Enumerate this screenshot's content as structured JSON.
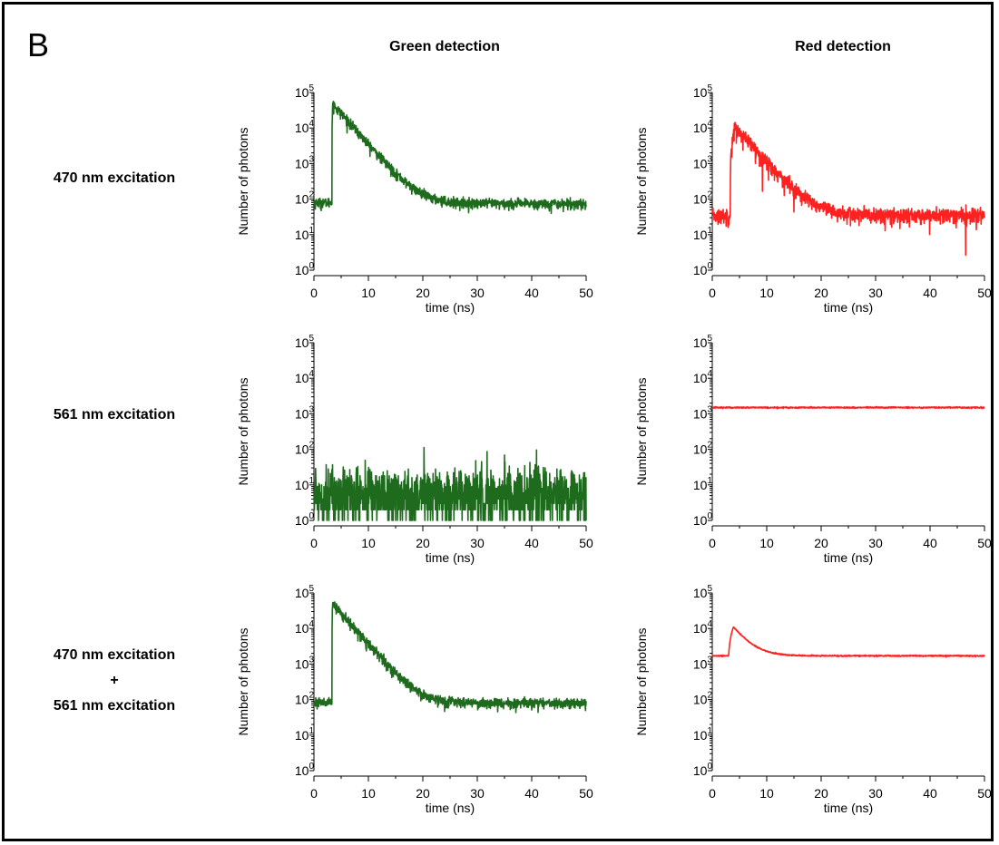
{
  "figure": {
    "panel_letter": "B",
    "column_headers": [
      "Green detection",
      "Red detection"
    ],
    "row_headers": [
      [
        "470 nm excitation"
      ],
      [
        "561 nm excitation"
      ],
      [
        "470 nm excitation",
        "+",
        "561 nm excitation"
      ]
    ]
  },
  "chart_data": [
    {
      "type": "line",
      "row": 0,
      "col": 0,
      "name": "green-470",
      "color": "#1e6b1e",
      "xlabel": "time (ns)",
      "ylabel": "Number of photons",
      "xlim": [
        0,
        50
      ],
      "xticks": [
        0,
        10,
        20,
        30,
        40,
        50
      ],
      "yscale": "log",
      "ylim_exp": [
        0,
        5
      ],
      "ytick_exps": [
        0,
        1,
        2,
        3,
        4,
        5
      ],
      "baseline": 80,
      "rise_time": 3.3,
      "peak": 48000,
      "tau": 2.5,
      "noise": 0.18,
      "background_after": 75
    },
    {
      "type": "line",
      "row": 0,
      "col": 1,
      "name": "red-470",
      "color": "#ff2020",
      "xlabel": "time (ns)",
      "ylabel": "Number of photons",
      "xlim": [
        0,
        50
      ],
      "xticks": [
        0,
        10,
        20,
        30,
        40,
        50
      ],
      "yscale": "log",
      "ylim_exp": [
        0,
        5
      ],
      "ytick_exps": [
        0,
        1,
        2,
        3,
        4,
        5
      ],
      "baseline": 35,
      "rise_time": 3.3,
      "peak": 10500,
      "tau": 2.6,
      "noise": 0.28,
      "background_after": 35,
      "rise_width": 0.9
    },
    {
      "type": "line",
      "row": 1,
      "col": 0,
      "name": "green-561",
      "color": "#1e6b1e",
      "xlabel": "time (ns)",
      "ylabel": "Number of photons",
      "xlim": [
        0,
        50
      ],
      "xticks": [
        0,
        10,
        20,
        30,
        40,
        50
      ],
      "yscale": "log",
      "ylim_exp": [
        0,
        5
      ],
      "ytick_exps": [
        0,
        1,
        2,
        3,
        4,
        5
      ],
      "baseline": 5,
      "rise_time": null,
      "peak": null,
      "tau": null,
      "noise": 0.9,
      "background_after": 5
    },
    {
      "type": "line",
      "row": 1,
      "col": 1,
      "name": "red-561",
      "color": "#ff2020",
      "xlabel": "time (ns)",
      "ylabel": "Number of photons",
      "xlim": [
        0,
        50
      ],
      "xticks": [
        0,
        10,
        20,
        30,
        40,
        50
      ],
      "yscale": "log",
      "ylim_exp": [
        0,
        5
      ],
      "ytick_exps": [
        0,
        1,
        2,
        3,
        4,
        5
      ],
      "baseline": 1500,
      "rise_time": null,
      "peak": null,
      "tau": null,
      "noise": 0.02,
      "background_after": 1500
    },
    {
      "type": "line",
      "row": 2,
      "col": 0,
      "name": "green-470-561",
      "color": "#1e6b1e",
      "xlabel": "time (ns)",
      "ylabel": "Number of photons",
      "xlim": [
        0,
        50
      ],
      "xticks": [
        0,
        10,
        20,
        30,
        40,
        50
      ],
      "yscale": "log",
      "ylim_exp": [
        0,
        5
      ],
      "ytick_exps": [
        0,
        1,
        2,
        3,
        4,
        5
      ],
      "baseline": 85,
      "rise_time": 3.3,
      "peak": 50000,
      "tau": 2.5,
      "noise": 0.18,
      "background_after": 80
    },
    {
      "type": "line",
      "row": 2,
      "col": 1,
      "name": "red-470-561",
      "color": "#ff2020",
      "xlabel": "time (ns)",
      "ylabel": "Number of photons",
      "xlim": [
        0,
        50
      ],
      "xticks": [
        0,
        10,
        20,
        30,
        40,
        50
      ],
      "yscale": "log",
      "ylim_exp": [
        0,
        5
      ],
      "ytick_exps": [
        0,
        1,
        2,
        3,
        4,
        5
      ],
      "baseline": 1700,
      "rise_time": 3.0,
      "peak": 11000,
      "tau": 2.2,
      "noise": 0.02,
      "background_after": 1700,
      "rise_width": 0.9
    }
  ]
}
